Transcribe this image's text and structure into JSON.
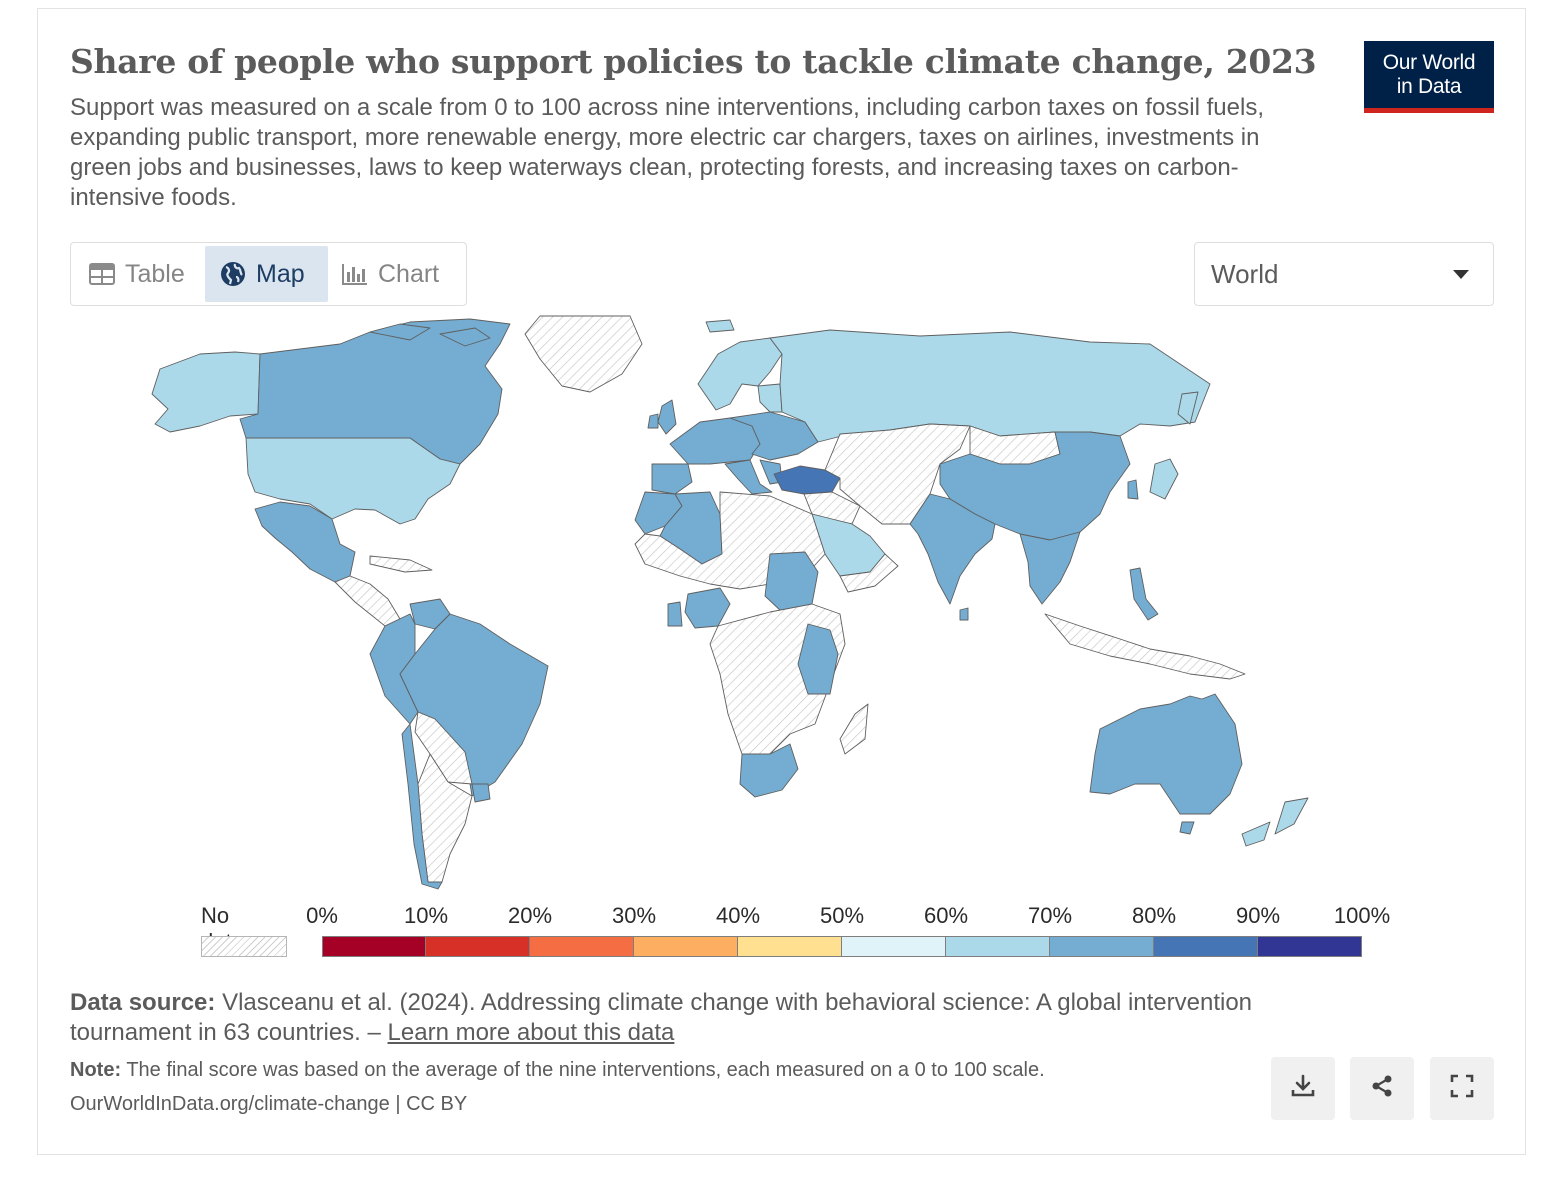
{
  "header": {
    "title": "Share of people who support policies to tackle climate change, 2023",
    "subtitle": "Support was measured on a scale from 0 to 100 across nine interventions, including carbon taxes on fossil fuels, expanding public transport, more renewable energy, more electric car chargers, taxes on airlines, investments in green jobs and businesses, laws to keep waterways clean, protecting forests, and increasing taxes on carbon-intensive foods.",
    "logo_line1": "Our World",
    "logo_line2": "in Data"
  },
  "tabs": [
    {
      "label": "Table",
      "icon": "table-icon",
      "active": false
    },
    {
      "label": "Map",
      "icon": "globe-icon",
      "active": true
    },
    {
      "label": "Chart",
      "icon": "bar-chart-icon",
      "active": false
    }
  ],
  "region_select": {
    "value": "World",
    "icon": "caret-down-icon"
  },
  "legend": {
    "no_data_label": "No data",
    "ticks": [
      "0%",
      "10%",
      "20%",
      "30%",
      "40%",
      "50%",
      "60%",
      "70%",
      "80%",
      "90%",
      "100%"
    ],
    "colors": [
      "#a50026",
      "#d73027",
      "#f46d43",
      "#fdae61",
      "#fee090",
      "#e0f3f8",
      "#abd9e9",
      "#74add1",
      "#4575b4",
      "#313695"
    ]
  },
  "map_colors": {
    "no_data": "#ffffff",
    "land_outline": "#5f5f5f",
    "bin_60_70": "#abd9e9",
    "bin_70_80": "#74add1",
    "bin_80_90": "#4575b4"
  },
  "footer": {
    "source_label": "Data source:",
    "source_text": "Vlasceanu et al. (2024). Addressing climate change with behavioral science: A global intervention tournament in 63 countries. –",
    "learn_more": "Learn more about this data",
    "note_label": "Note:",
    "note_text": "The final score was based on the average of the nine interventions, each measured on a 0 to 100 scale.",
    "url": "OurWorldInData.org/climate-change | CC BY"
  },
  "actions": [
    {
      "name": "download-button",
      "icon": "download-icon"
    },
    {
      "name": "share-button",
      "icon": "share-icon"
    },
    {
      "name": "fullscreen-button",
      "icon": "fullscreen-icon"
    }
  ]
}
